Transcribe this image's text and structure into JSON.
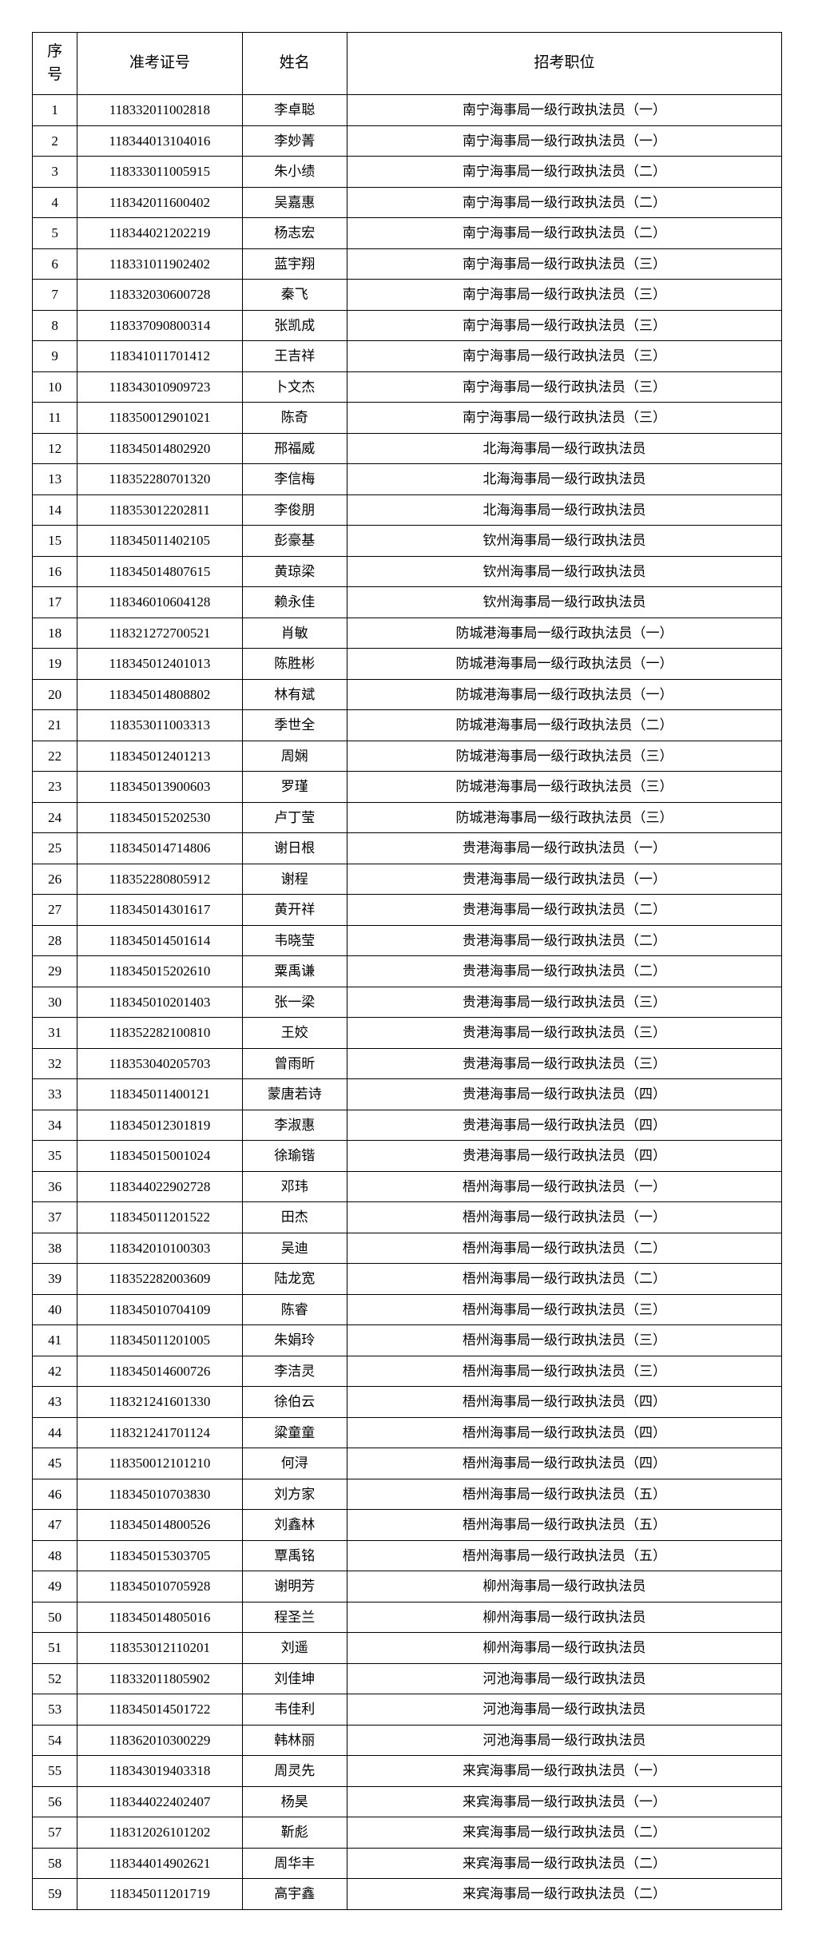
{
  "table": {
    "headers": {
      "seq": "序\n号",
      "ticket": "准考证号",
      "name": "姓名",
      "position": "招考职位"
    },
    "rows": [
      {
        "seq": "1",
        "ticket": "118332011002818",
        "name": "李卓聪",
        "position": "南宁海事局一级行政执法员（一）"
      },
      {
        "seq": "2",
        "ticket": "118344013104016",
        "name": "李妙菁",
        "position": "南宁海事局一级行政执法员（一）"
      },
      {
        "seq": "3",
        "ticket": "118333011005915",
        "name": "朱小绩",
        "position": "南宁海事局一级行政执法员（二）"
      },
      {
        "seq": "4",
        "ticket": "118342011600402",
        "name": "吴嘉惠",
        "position": "南宁海事局一级行政执法员（二）"
      },
      {
        "seq": "5",
        "ticket": "118344021202219",
        "name": "杨志宏",
        "position": "南宁海事局一级行政执法员（二）"
      },
      {
        "seq": "6",
        "ticket": "118331011902402",
        "name": "蓝宇翔",
        "position": "南宁海事局一级行政执法员（三）"
      },
      {
        "seq": "7",
        "ticket": "118332030600728",
        "name": "秦飞",
        "position": "南宁海事局一级行政执法员（三）"
      },
      {
        "seq": "8",
        "ticket": "118337090800314",
        "name": "张凯成",
        "position": "南宁海事局一级行政执法员（三）"
      },
      {
        "seq": "9",
        "ticket": "118341011701412",
        "name": "王吉祥",
        "position": "南宁海事局一级行政执法员（三）"
      },
      {
        "seq": "10",
        "ticket": "118343010909723",
        "name": "卜文杰",
        "position": "南宁海事局一级行政执法员（三）"
      },
      {
        "seq": "11",
        "ticket": "118350012901021",
        "name": "陈奇",
        "position": "南宁海事局一级行政执法员（三）"
      },
      {
        "seq": "12",
        "ticket": "118345014802920",
        "name": "邢福威",
        "position": "北海海事局一级行政执法员"
      },
      {
        "seq": "13",
        "ticket": "118352280701320",
        "name": "李信梅",
        "position": "北海海事局一级行政执法员"
      },
      {
        "seq": "14",
        "ticket": "118353012202811",
        "name": "李俊朋",
        "position": "北海海事局一级行政执法员"
      },
      {
        "seq": "15",
        "ticket": "118345011402105",
        "name": "彭豪基",
        "position": "钦州海事局一级行政执法员"
      },
      {
        "seq": "16",
        "ticket": "118345014807615",
        "name": "黄琼梁",
        "position": "钦州海事局一级行政执法员"
      },
      {
        "seq": "17",
        "ticket": "118346010604128",
        "name": "赖永佳",
        "position": "钦州海事局一级行政执法员"
      },
      {
        "seq": "18",
        "ticket": "118321272700521",
        "name": "肖敏",
        "position": "防城港海事局一级行政执法员（一）"
      },
      {
        "seq": "19",
        "ticket": "118345012401013",
        "name": "陈胜彬",
        "position": "防城港海事局一级行政执法员（一）"
      },
      {
        "seq": "20",
        "ticket": "118345014808802",
        "name": "林有斌",
        "position": "防城港海事局一级行政执法员（一）"
      },
      {
        "seq": "21",
        "ticket": "118353011003313",
        "name": "季世全",
        "position": "防城港海事局一级行政执法员（二）"
      },
      {
        "seq": "22",
        "ticket": "118345012401213",
        "name": "周娴",
        "position": "防城港海事局一级行政执法员（三）"
      },
      {
        "seq": "23",
        "ticket": "118345013900603",
        "name": "罗瑾",
        "position": "防城港海事局一级行政执法员（三）"
      },
      {
        "seq": "24",
        "ticket": "118345015202530",
        "name": "卢丁莹",
        "position": "防城港海事局一级行政执法员（三）"
      },
      {
        "seq": "25",
        "ticket": "118345014714806",
        "name": "谢日根",
        "position": "贵港海事局一级行政执法员（一）"
      },
      {
        "seq": "26",
        "ticket": "118352280805912",
        "name": "谢程",
        "position": "贵港海事局一级行政执法员（一）"
      },
      {
        "seq": "27",
        "ticket": "118345014301617",
        "name": "黄开祥",
        "position": "贵港海事局一级行政执法员（二）"
      },
      {
        "seq": "28",
        "ticket": "118345014501614",
        "name": "韦晓莹",
        "position": "贵港海事局一级行政执法员（二）"
      },
      {
        "seq": "29",
        "ticket": "118345015202610",
        "name": "粟禹谦",
        "position": "贵港海事局一级行政执法员（二）"
      },
      {
        "seq": "30",
        "ticket": "118345010201403",
        "name": "张一梁",
        "position": "贵港海事局一级行政执法员（三）"
      },
      {
        "seq": "31",
        "ticket": "118352282100810",
        "name": "王姣",
        "position": "贵港海事局一级行政执法员（三）"
      },
      {
        "seq": "32",
        "ticket": "118353040205703",
        "name": "曾雨昕",
        "position": "贵港海事局一级行政执法员（三）"
      },
      {
        "seq": "33",
        "ticket": "118345011400121",
        "name": "蒙唐若诗",
        "position": "贵港海事局一级行政执法员（四）"
      },
      {
        "seq": "34",
        "ticket": "118345012301819",
        "name": "李淑惠",
        "position": "贵港海事局一级行政执法员（四）"
      },
      {
        "seq": "35",
        "ticket": "118345015001024",
        "name": "徐瑜锴",
        "position": "贵港海事局一级行政执法员（四）"
      },
      {
        "seq": "36",
        "ticket": "118344022902728",
        "name": "邓玮",
        "position": "梧州海事局一级行政执法员（一）"
      },
      {
        "seq": "37",
        "ticket": "118345011201522",
        "name": "田杰",
        "position": "梧州海事局一级行政执法员（一）"
      },
      {
        "seq": "38",
        "ticket": "118342010100303",
        "name": "吴迪",
        "position": "梧州海事局一级行政执法员（二）"
      },
      {
        "seq": "39",
        "ticket": "118352282003609",
        "name": "陆龙宽",
        "position": "梧州海事局一级行政执法员（二）"
      },
      {
        "seq": "40",
        "ticket": "118345010704109",
        "name": "陈睿",
        "position": "梧州海事局一级行政执法员（三）"
      },
      {
        "seq": "41",
        "ticket": "118345011201005",
        "name": "朱娟玲",
        "position": "梧州海事局一级行政执法员（三）"
      },
      {
        "seq": "42",
        "ticket": "118345014600726",
        "name": "李洁灵",
        "position": "梧州海事局一级行政执法员（三）"
      },
      {
        "seq": "43",
        "ticket": "118321241601330",
        "name": "徐伯云",
        "position": "梧州海事局一级行政执法员（四）"
      },
      {
        "seq": "44",
        "ticket": "118321241701124",
        "name": "粱童童",
        "position": "梧州海事局一级行政执法员（四）"
      },
      {
        "seq": "45",
        "ticket": "118350012101210",
        "name": "何浔",
        "position": "梧州海事局一级行政执法员（四）"
      },
      {
        "seq": "46",
        "ticket": "118345010703830",
        "name": "刘方家",
        "position": "梧州海事局一级行政执法员（五）"
      },
      {
        "seq": "47",
        "ticket": "118345014800526",
        "name": "刘鑫林",
        "position": "梧州海事局一级行政执法员（五）"
      },
      {
        "seq": "48",
        "ticket": "118345015303705",
        "name": "覃禹铭",
        "position": "梧州海事局一级行政执法员（五）"
      },
      {
        "seq": "49",
        "ticket": "118345010705928",
        "name": "谢明芳",
        "position": "柳州海事局一级行政执法员"
      },
      {
        "seq": "50",
        "ticket": "118345014805016",
        "name": "程圣兰",
        "position": "柳州海事局一级行政执法员"
      },
      {
        "seq": "51",
        "ticket": "118353012110201",
        "name": "刘遥",
        "position": "柳州海事局一级行政执法员"
      },
      {
        "seq": "52",
        "ticket": "118332011805902",
        "name": "刘佳坤",
        "position": "河池海事局一级行政执法员"
      },
      {
        "seq": "53",
        "ticket": "118345014501722",
        "name": "韦佳利",
        "position": "河池海事局一级行政执法员"
      },
      {
        "seq": "54",
        "ticket": "118362010300229",
        "name": "韩林丽",
        "position": "河池海事局一级行政执法员"
      },
      {
        "seq": "55",
        "ticket": "118343019403318",
        "name": "周灵先",
        "position": "来宾海事局一级行政执法员（一）"
      },
      {
        "seq": "56",
        "ticket": "118344022402407",
        "name": "杨昊",
        "position": "来宾海事局一级行政执法员（一）"
      },
      {
        "seq": "57",
        "ticket": "118312026101202",
        "name": "靳彪",
        "position": "来宾海事局一级行政执法员（二）"
      },
      {
        "seq": "58",
        "ticket": "118344014902621",
        "name": "周华丰",
        "position": "来宾海事局一级行政执法员（二）"
      },
      {
        "seq": "59",
        "ticket": "118345011201719",
        "name": "高宇鑫",
        "position": "来宾海事局一级行政执法员（二）"
      }
    ]
  }
}
